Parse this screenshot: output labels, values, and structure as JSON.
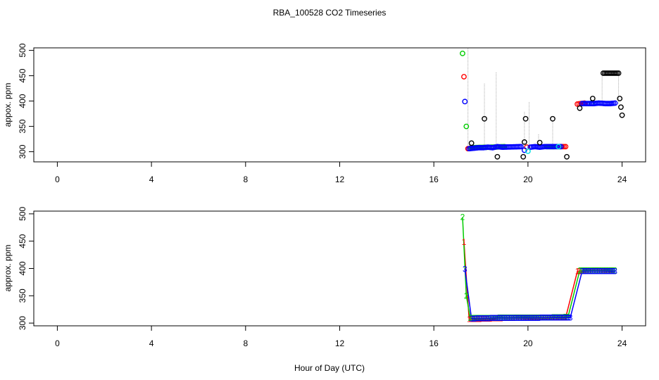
{
  "figure": {
    "title": "RBA_100528  CO2 Timeseries",
    "xlabel": "Hour of Day (UTC)"
  },
  "chart_data": [
    {
      "type": "scatter",
      "panel": "top",
      "ylabel": "appox. ppm",
      "xlim": [
        -1,
        25
      ],
      "ylim": [
        280,
        505
      ],
      "xticks": [
        0,
        4,
        8,
        12,
        16,
        20,
        24
      ],
      "yticks": [
        300,
        350,
        400,
        450,
        500
      ],
      "grid": false,
      "colors": {
        "s1": "#ff0000",
        "s2": "#00cc00",
        "s3": "#0000ff",
        "s4": "#00e0e0",
        "black": "#000000",
        "vline": "#aaaaaa"
      },
      "marker": "open-circle",
      "vertical_lines": [
        {
          "x": 17.45,
          "y0": 305,
          "y1": 505
        },
        {
          "x": 18.15,
          "y0": 308,
          "y1": 435
        },
        {
          "x": 18.65,
          "y0": 308,
          "y1": 458
        },
        {
          "x": 19.85,
          "y0": 305,
          "y1": 380
        },
        {
          "x": 20.05,
          "y0": 308,
          "y1": 398
        },
        {
          "x": 20.45,
          "y0": 308,
          "y1": 335
        },
        {
          "x": 21.05,
          "y0": 308,
          "y1": 362
        },
        {
          "x": 23.15,
          "y0": 395,
          "y1": 455
        },
        {
          "x": 23.85,
          "y0": 395,
          "y1": 455
        }
      ],
      "series": [
        {
          "color": "s1",
          "points": [
            [
              17.28,
              448
            ],
            [
              17.45,
              306
            ],
            [
              17.55,
              307
            ],
            [
              19.95,
              309
            ],
            [
              21.25,
              310
            ],
            [
              21.6,
              310
            ],
            [
              22.1,
              394
            ],
            [
              22.4,
              396
            ]
          ]
        },
        {
          "color": "s2",
          "points": [
            [
              17.22,
              494
            ],
            [
              17.38,
              350
            ],
            [
              17.6,
              308
            ],
            [
              18.5,
              309
            ],
            [
              19.0,
              310
            ],
            [
              20.8,
              310
            ],
            [
              21.1,
              310
            ],
            [
              22.7,
              396
            ]
          ]
        },
        {
          "color": "s3",
          "points": [
            [
              17.32,
              399
            ],
            [
              17.5,
              306
            ],
            [
              17.7,
              307
            ],
            [
              17.9,
              308
            ],
            [
              18.1,
              308
            ],
            [
              18.3,
              309
            ],
            [
              18.5,
              308
            ],
            [
              18.7,
              310
            ],
            [
              18.9,
              309
            ],
            [
              19.7,
              310
            ],
            [
              19.85,
              303
            ],
            [
              20.1,
              309
            ],
            [
              20.3,
              310
            ],
            [
              20.5,
              309
            ],
            [
              20.7,
              310
            ],
            [
              20.9,
              310
            ],
            [
              21.2,
              310
            ],
            [
              21.4,
              310
            ],
            [
              22.3,
              395
            ],
            [
              22.5,
              395
            ],
            [
              22.8,
              395
            ],
            [
              23.0,
              396
            ],
            [
              23.3,
              395
            ],
            [
              23.5,
              395
            ],
            [
              23.7,
              396
            ]
          ]
        },
        {
          "color": "s4",
          "points": [
            [
              20.0,
              301
            ],
            [
              21.3,
              310
            ]
          ]
        },
        {
          "color": "black",
          "points": [
            [
              17.6,
              317
            ],
            [
              18.15,
              365
            ],
            [
              18.7,
              290
            ],
            [
              19.8,
              290
            ],
            [
              19.85,
              319
            ],
            [
              19.9,
              365
            ],
            [
              20.5,
              318
            ],
            [
              21.05,
              365
            ],
            [
              21.65,
              290
            ],
            [
              22.2,
              386
            ],
            [
              22.75,
              405
            ],
            [
              23.2,
              455
            ],
            [
              23.85,
              455
            ],
            [
              23.9,
              405
            ],
            [
              23.95,
              388
            ],
            [
              24.0,
              372
            ]
          ]
        }
      ]
    },
    {
      "type": "line",
      "panel": "bottom",
      "ylabel": "approx. ppm",
      "xlim": [
        -1,
        25
      ],
      "ylim": [
        295,
        505
      ],
      "xticks": [
        0,
        4,
        8,
        12,
        16,
        20,
        24
      ],
      "yticks": [
        300,
        350,
        400,
        450,
        500
      ],
      "grid": false,
      "colors": {
        "s1": "#ff0000",
        "s2": "#00cc00",
        "s3": "#0000ff"
      },
      "marker": "digits",
      "series": [
        {
          "label": "1",
          "color": "s1",
          "points": [
            [
              17.28,
              448
            ],
            [
              17.5,
              307
            ],
            [
              18.3,
              308
            ],
            [
              19.0,
              309
            ],
            [
              19.9,
              310
            ],
            [
              20.8,
              310
            ],
            [
              21.6,
              310
            ],
            [
              22.1,
              395
            ],
            [
              22.8,
              396
            ],
            [
              23.6,
              396
            ]
          ]
        },
        {
          "label": "2",
          "color": "s2",
          "points": [
            [
              17.22,
              494
            ],
            [
              17.38,
              350
            ],
            [
              17.55,
              309
            ],
            [
              18.4,
              309
            ],
            [
              19.1,
              310
            ],
            [
              20.0,
              310
            ],
            [
              20.9,
              310
            ],
            [
              21.7,
              311
            ],
            [
              22.2,
              396
            ],
            [
              23.0,
              396
            ],
            [
              23.7,
              396
            ]
          ]
        },
        {
          "label": "3",
          "color": "s3",
          "points": [
            [
              17.32,
              399
            ],
            [
              17.6,
              308
            ],
            [
              18.5,
              309
            ],
            [
              19.3,
              309
            ],
            [
              20.1,
              309
            ],
            [
              21.0,
              310
            ],
            [
              21.8,
              310
            ],
            [
              22.3,
              395
            ],
            [
              23.2,
              395
            ],
            [
              23.7,
              395
            ]
          ]
        }
      ]
    }
  ]
}
